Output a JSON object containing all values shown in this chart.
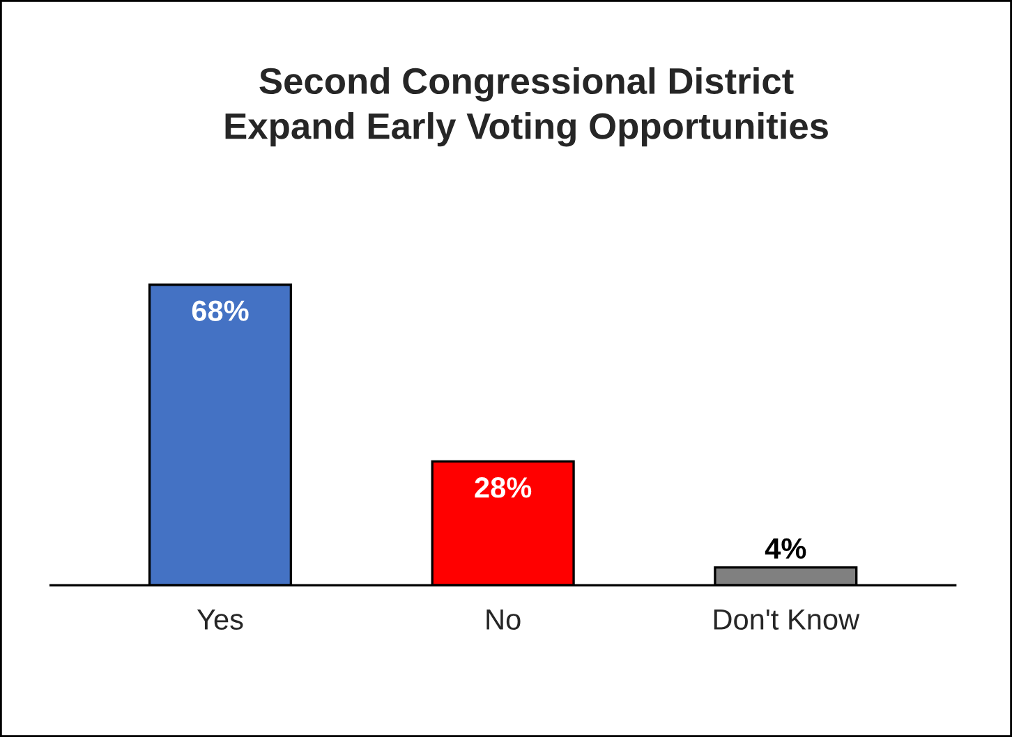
{
  "chart_data": {
    "type": "bar",
    "title": "Second Congressional District\nExpand Early Voting Opportunities",
    "categories": [
      "Yes",
      "No",
      "Don't Know"
    ],
    "values": [
      68,
      28,
      4
    ],
    "colors": [
      "#4472c4",
      "#ff0000",
      "#808080"
    ],
    "value_labels": [
      "68%",
      "28%",
      "4%"
    ]
  }
}
